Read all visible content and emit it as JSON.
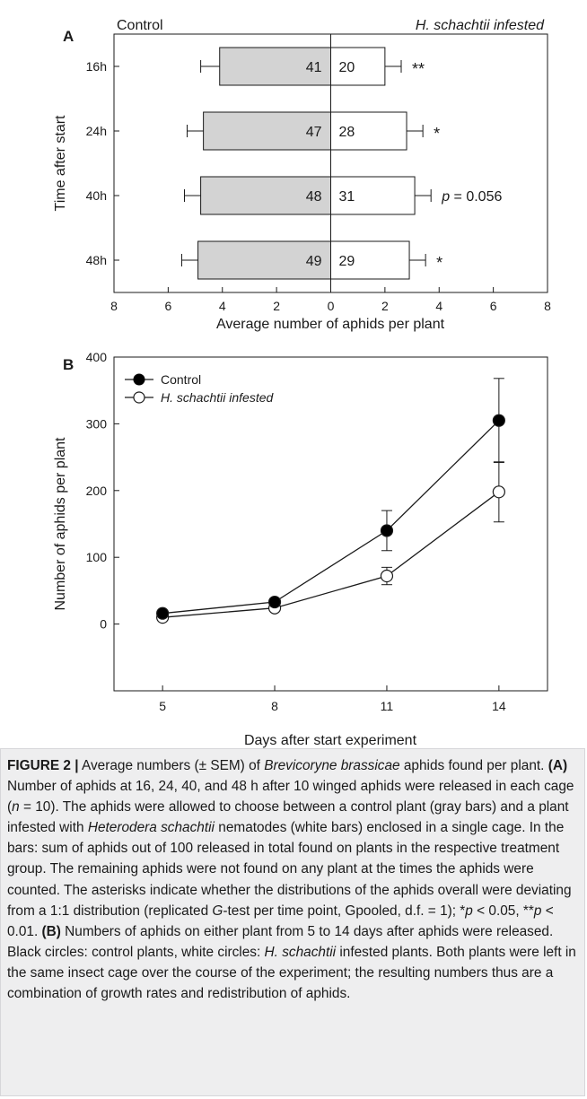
{
  "chart_data": [
    {
      "panel_label": "A",
      "type": "bar",
      "orientation": "horizontal-opposed",
      "left_title": "Control",
      "right_title": "H. schachtii infested",
      "ylabel": "Time after start",
      "xlabel": "Average number of aphids per plant",
      "categories": [
        "16h",
        "24h",
        "40h",
        "48h"
      ],
      "xlim": [
        -8,
        8
      ],
      "x_tick_labels": [
        "8",
        "6",
        "4",
        "2",
        "0",
        "2",
        "4",
        "6",
        "8"
      ],
      "series": [
        {
          "name": "Control",
          "color": "#d3d3d3",
          "values": [
            4.1,
            4.7,
            4.8,
            4.9
          ],
          "error": [
            0.7,
            0.6,
            0.6,
            0.6
          ],
          "bar_labels": [
            "41",
            "47",
            "48",
            "49"
          ]
        },
        {
          "name": "H. schachtii infested",
          "color": "#ffffff",
          "values": [
            2.0,
            2.8,
            3.1,
            2.9
          ],
          "error": [
            0.6,
            0.6,
            0.6,
            0.6
          ],
          "bar_labels": [
            "20",
            "28",
            "31",
            "29"
          ]
        }
      ],
      "annotations": [
        "**",
        "*",
        "p = 0.056",
        "*"
      ],
      "grid": false
    },
    {
      "panel_label": "B",
      "type": "line",
      "xlabel": "Days after start experiment",
      "ylabel": "Number of aphids per plant",
      "x": [
        5,
        8,
        11,
        14
      ],
      "xlim": [
        3.7,
        15.3
      ],
      "ylim": [
        -100,
        400
      ],
      "x_ticks": [
        5,
        8,
        11,
        14
      ],
      "y_ticks": [
        0,
        100,
        200,
        300,
        400
      ],
      "series": [
        {
          "name": "Control",
          "marker": "filled-circle",
          "values": [
            16,
            33,
            140,
            305
          ],
          "error": [
            3,
            5,
            30,
            63
          ]
        },
        {
          "name": "H. schachtii infested",
          "marker": "open-circle",
          "values": [
            10,
            24,
            72,
            198
          ],
          "error": [
            2,
            4,
            13,
            45
          ]
        }
      ],
      "legend_position": "top-left",
      "grid": false
    }
  ],
  "caption": {
    "figure_label": "FIGURE 2 |",
    "text_1": " Average numbers (± SEM) of ",
    "species": "Brevicoryne brassicae",
    "text_2": " aphids found per plant. ",
    "label_a": "(A)",
    "text_3": " Number of aphids at 16, 24, 40, and 48 h after 10 winged aphids were released in each cage (",
    "n_symbol": "n",
    "text_4": " = 10). The aphids were allowed to choose between a control plant (gray bars) and a plant infested with ",
    "nematode": "Heterodera schachtii",
    "text_5": " nematodes (white bars) enclosed in a single cage. In the bars: sum of aphids out of 100 released in total found on plants in the respective treatment group. The remaining aphids were not found on any plant at the times the aphids were counted. The asterisks indicate whether the distributions of the aphids overall were deviating from a 1:1 distribution (replicated ",
    "g_symbol": "G",
    "text_6": "-test per time point, Gpooled, d.f. = 1); *",
    "p1": "p",
    "text_7": " < 0.05, **",
    "p2": "p",
    "text_8": " < 0.01. ",
    "label_b": "(B)",
    "text_9": " Numbers of aphids on either plant from 5 to 14 days after aphids were released. Black circles: control plants, white circles: ",
    "short_name": "H. schachtii",
    "text_10": " infested plants. Both plants were left in the same insect cage over the course of the experiment; the resulting numbers thus are a combination of growth rates and redistribution of aphids."
  }
}
